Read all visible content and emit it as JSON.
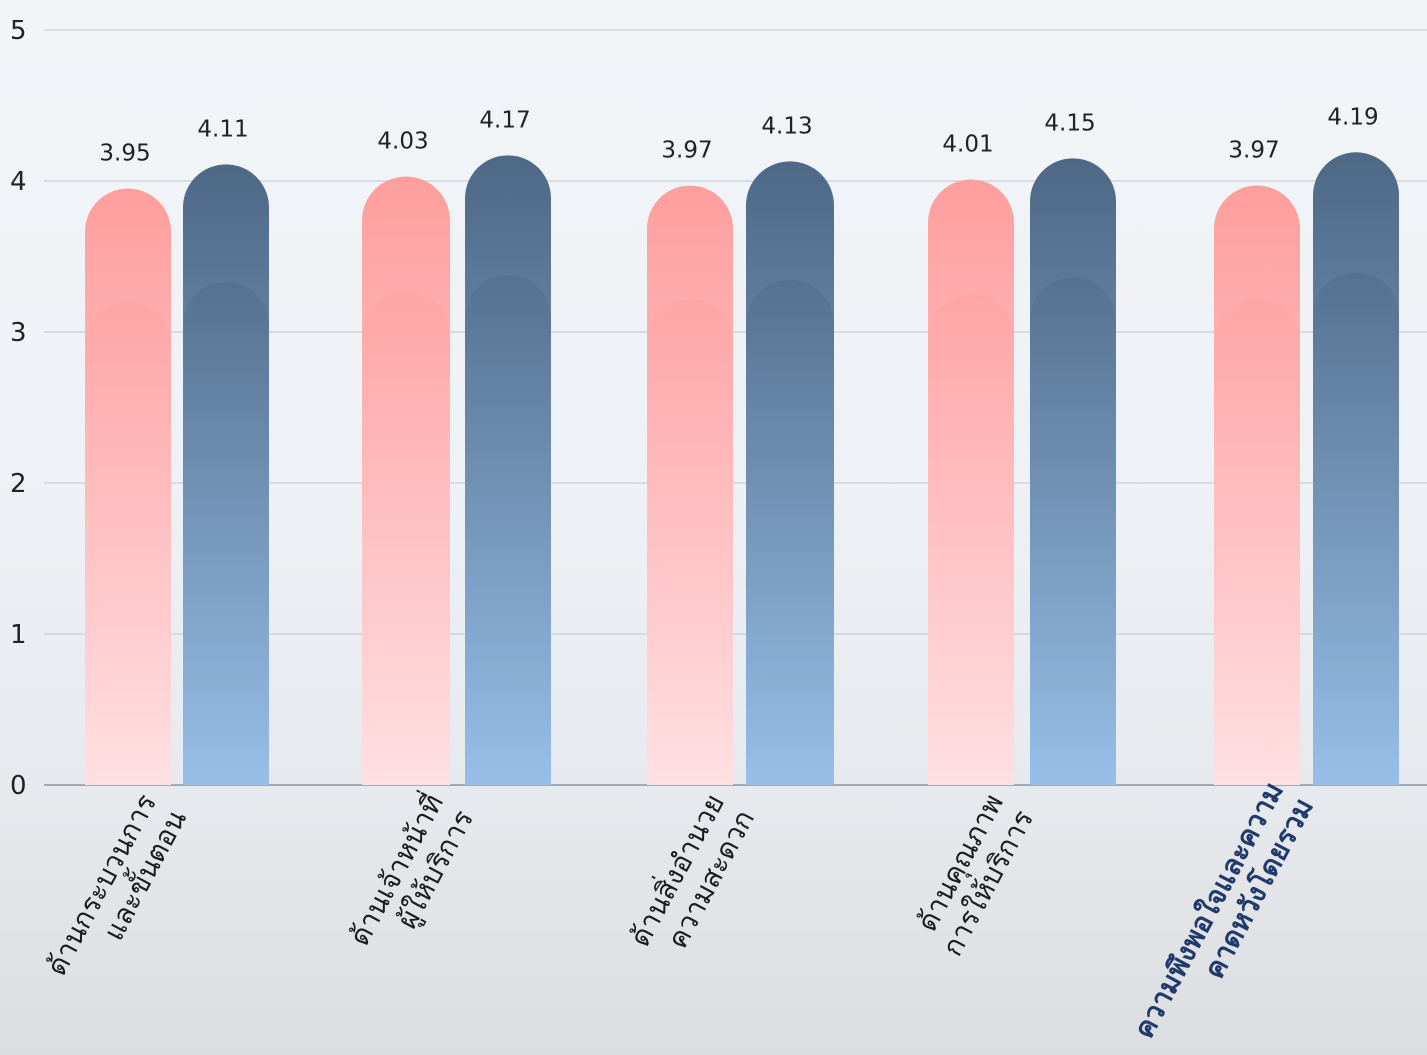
{
  "chart_data": {
    "type": "bar",
    "categories": [
      [
        "ด้านกระบวนการ",
        "และขั้นตอน"
      ],
      [
        "ด้านเจ้าหน้าที่",
        "ผู้ให้บริการ"
      ],
      [
        "ด้านสิ่งอำนวย",
        "ความสะดวก"
      ],
      [
        "ด้านคุณภาพ",
        "การให้บริการ"
      ],
      [
        "ความพึงพอใจและความ",
        "คาดหวังโดยรวม"
      ]
    ],
    "highlight_category_index": 4,
    "series": [
      {
        "values": [
          3.95,
          4.03,
          3.97,
          4.01,
          3.97
        ],
        "color_top": "#ff9e9e",
        "color_bottom": "#ffe0e3"
      },
      {
        "values": [
          4.11,
          4.17,
          4.13,
          4.15,
          4.19
        ],
        "color_top": "#4e6886",
        "color_bottom": "#97bfe8"
      }
    ],
    "value_labels": [
      [
        "3.95",
        "4.03",
        "3.97",
        "4.01",
        "3.97"
      ],
      [
        "4.11",
        "4.17",
        "4.13",
        "4.15",
        "4.19"
      ]
    ],
    "y_ticks": [
      0,
      1,
      2,
      3,
      4,
      5
    ],
    "ylim": [
      0,
      5
    ],
    "grid": true,
    "legend": "none"
  }
}
